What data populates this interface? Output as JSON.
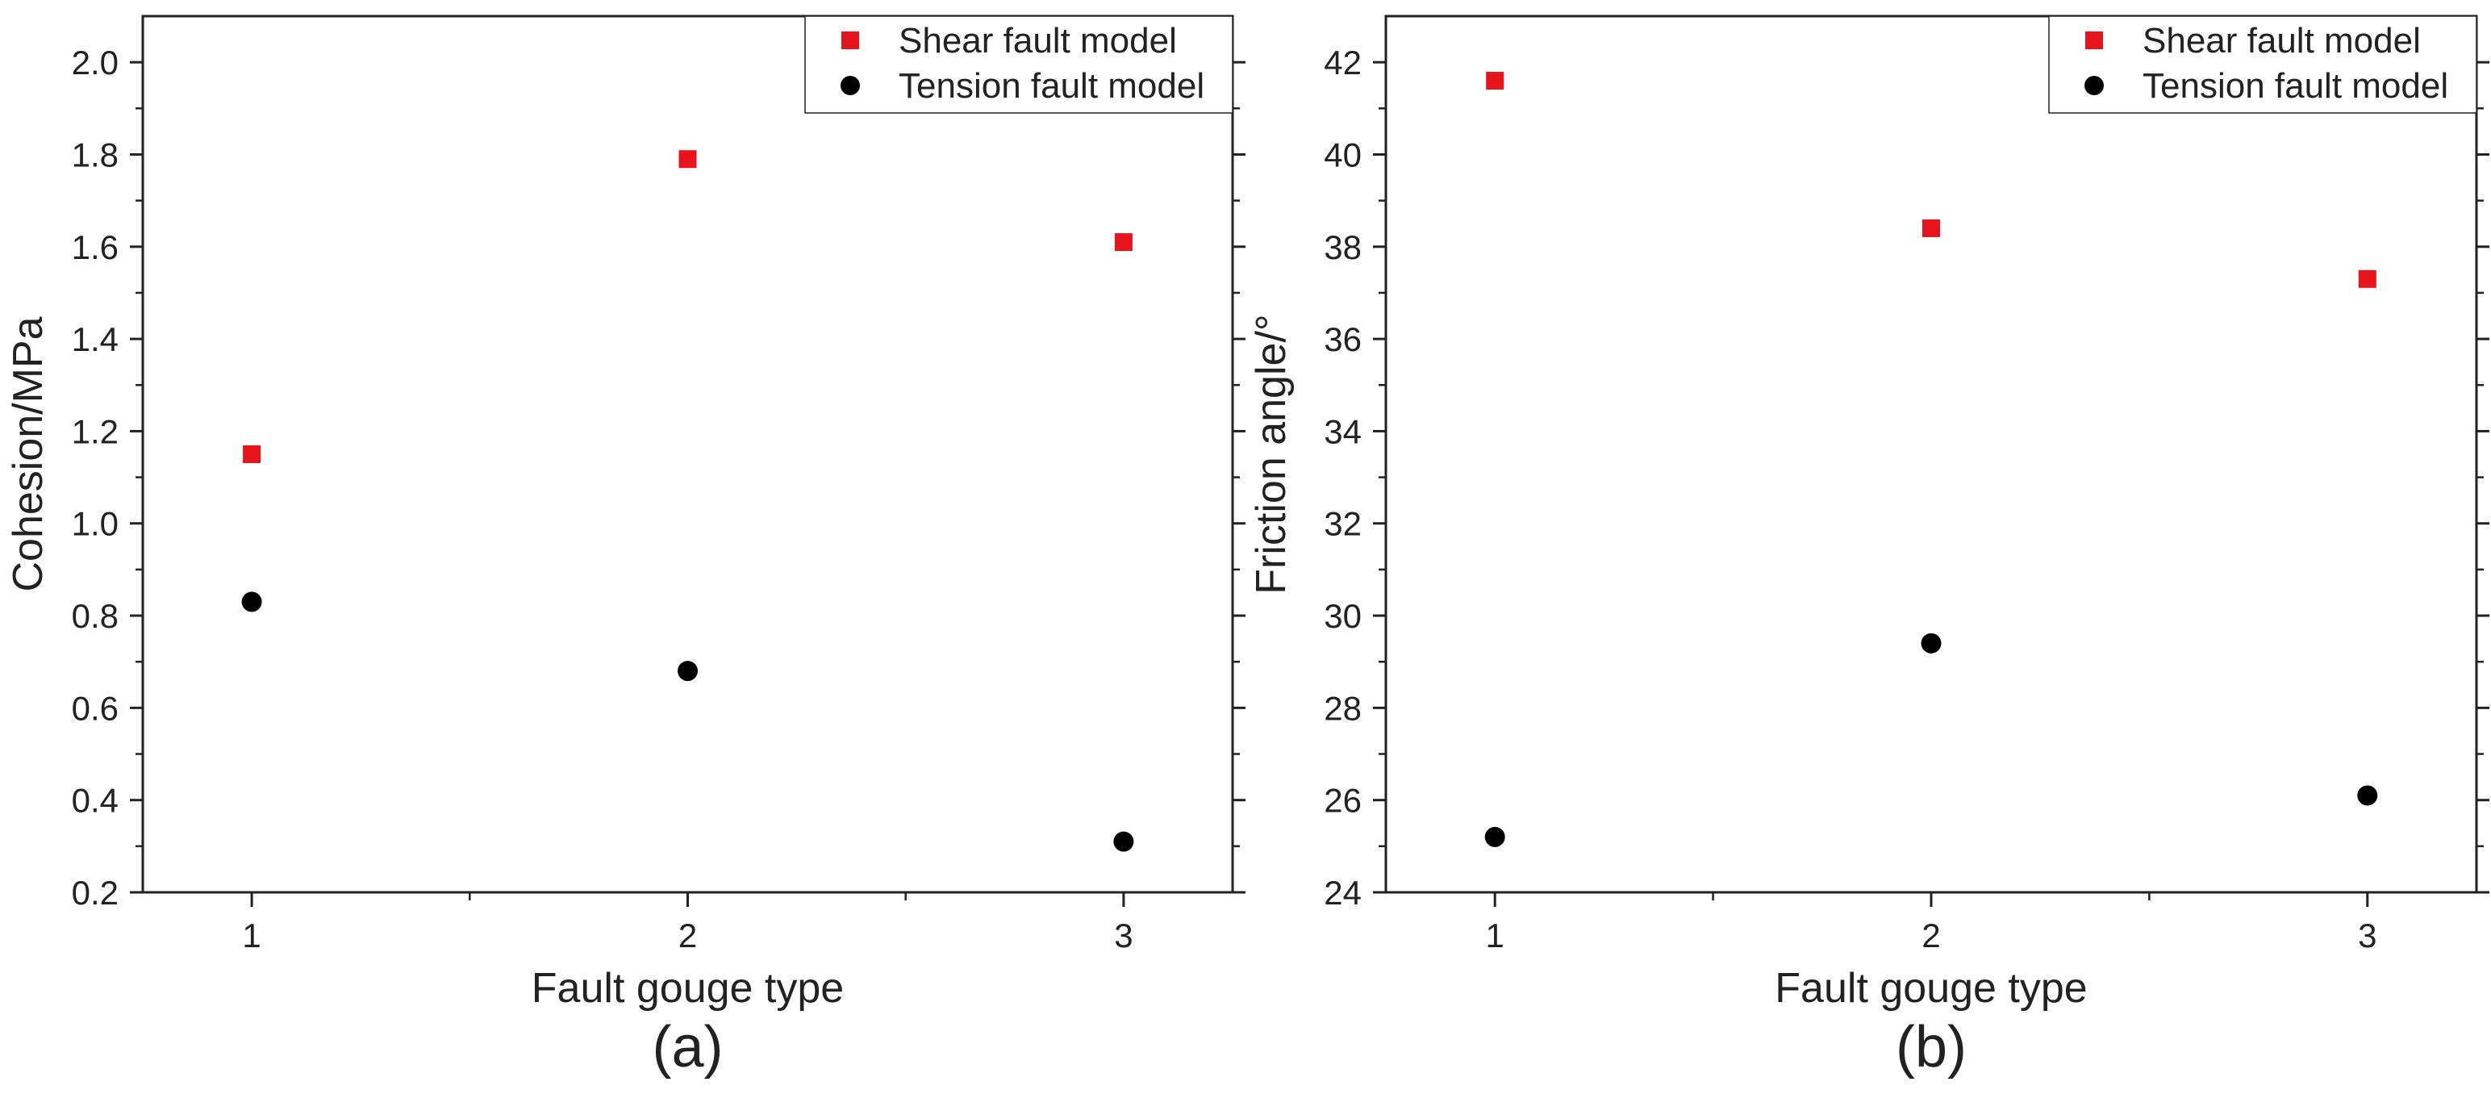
{
  "chart_data": [
    {
      "panel": "(a)",
      "type": "scatter",
      "xlabel": "Fault gouge type",
      "ylabel": "Cohesion/MPa",
      "xlim": [
        0.75,
        3.25
      ],
      "ylim": [
        0.2,
        2.1
      ],
      "xticks": [
        1,
        2,
        3
      ],
      "yticks": [
        0.2,
        0.4,
        0.6,
        0.8,
        1.0,
        1.2,
        1.4,
        1.6,
        1.8,
        2.0
      ],
      "ytick_labels": [
        "0.2",
        "0.4",
        "0.6",
        "0.8",
        "1.0",
        "1.2",
        "1.4",
        "1.6",
        "1.8",
        "2.0"
      ],
      "legend_position": "top-right",
      "series": [
        {
          "name": "Shear fault model",
          "marker": "square",
          "color": "#e8141b",
          "x": [
            1,
            2,
            3
          ],
          "y": [
            1.15,
            1.79,
            1.61
          ]
        },
        {
          "name": "Tension fault model",
          "marker": "circle",
          "color": "#000000",
          "x": [
            1,
            2,
            3
          ],
          "y": [
            0.83,
            0.68,
            0.31
          ]
        }
      ]
    },
    {
      "panel": "(b)",
      "type": "scatter",
      "xlabel": "Fault gouge type",
      "ylabel": "Friction angle/°",
      "xlim": [
        0.75,
        3.25
      ],
      "ylim": [
        24,
        43
      ],
      "xticks": [
        1,
        2,
        3
      ],
      "yticks": [
        24,
        26,
        28,
        30,
        32,
        34,
        36,
        38,
        40,
        42
      ],
      "ytick_labels": [
        "24",
        "26",
        "28",
        "30",
        "32",
        "34",
        "36",
        "38",
        "40",
        "42"
      ],
      "legend_position": "top-right",
      "series": [
        {
          "name": "Shear fault model",
          "marker": "square",
          "color": "#e8141b",
          "x": [
            1,
            2,
            3
          ],
          "y": [
            41.6,
            38.4,
            37.3
          ]
        },
        {
          "name": "Tension fault model",
          "marker": "circle",
          "color": "#000000",
          "x": [
            1,
            2,
            3
          ],
          "y": [
            25.2,
            29.4,
            26.1
          ]
        }
      ]
    }
  ]
}
